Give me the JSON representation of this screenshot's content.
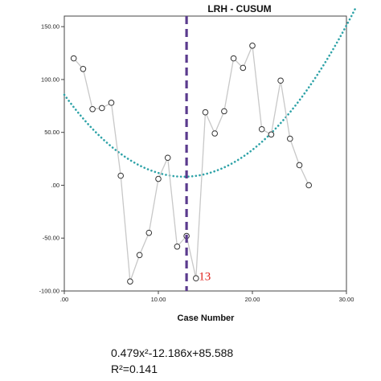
{
  "chart_data": {
    "type": "scatter",
    "title": "LRH - CUSUM",
    "xlabel": "Case Number",
    "ylabel": "",
    "xlim": [
      0,
      30
    ],
    "ylim": [
      -100,
      160
    ],
    "x_ticks": [
      0,
      10,
      20,
      30
    ],
    "x_tick_labels": [
      ".00",
      "10.00",
      "20.00",
      "30.00"
    ],
    "y_ticks": [
      -100,
      -50,
      0,
      50,
      100,
      150
    ],
    "y_tick_labels": [
      "-100.00",
      "-50.00",
      ".00",
      "50.00",
      "100.00",
      "150.00"
    ],
    "grid": false,
    "series": [
      {
        "kind": "observed",
        "x": [
          1,
          2,
          3,
          4,
          5,
          6,
          7,
          8,
          9,
          10,
          11,
          12,
          13,
          14,
          15,
          16,
          17,
          18,
          19,
          20,
          21,
          22,
          23,
          24,
          25,
          26
        ],
        "y": [
          120,
          110,
          72,
          73,
          78,
          9,
          -91,
          -66,
          -45,
          6,
          26,
          -58,
          -48,
          -88,
          69,
          49,
          70,
          120,
          111,
          132,
          53,
          48,
          99,
          44,
          19,
          0
        ],
        "marker": "open-circle",
        "line_color": "#c8c8c8",
        "marker_color": "#333333"
      },
      {
        "kind": "quadratic-fit",
        "coefficients": [
          0.479,
          -12.186,
          85.588
        ],
        "x_range": [
          0,
          31
        ],
        "style": "dotted",
        "color": "#2fa3a8"
      }
    ],
    "reference_line": {
      "x": 13,
      "style": "dashed",
      "color": "#5b3b8e"
    },
    "annotations": [
      {
        "text": "13",
        "x": 14.3,
        "y": -86,
        "color": "#e0201b"
      }
    ],
    "equation": "0.479x²-12.186x+85.588",
    "r_squared": "R²=0.141"
  }
}
